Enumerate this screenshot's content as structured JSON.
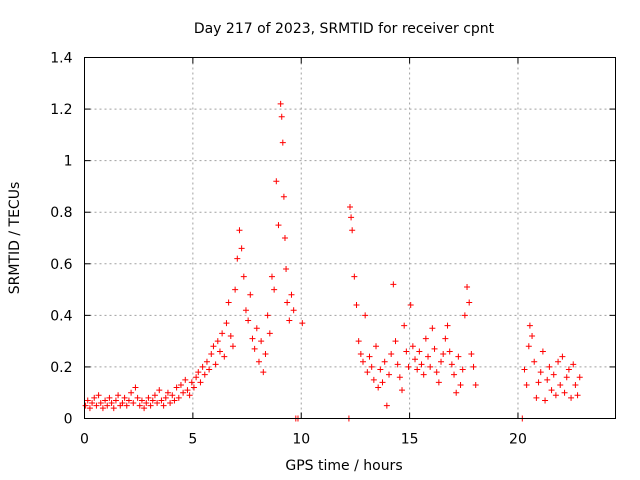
{
  "chart_data": {
    "type": "scatter",
    "title": "Day 217 of 2023, SRMTID for receiver cpnt",
    "xlabel": "GPS time / hours",
    "ylabel": "SRMTID / TECUs",
    "xlim": [
      0,
      24.5
    ],
    "ylim": [
      0,
      1.4
    ],
    "xticks": [
      0,
      5,
      10,
      15,
      20
    ],
    "xtick_labels": [
      "0",
      "5",
      "10",
      "15",
      "20"
    ],
    "yticks": [
      0,
      0.2,
      0.4,
      0.6,
      0.8,
      1.0,
      1.2,
      1.4
    ],
    "ytick_labels": [
      "0",
      "0.2",
      "0.4",
      "0.6",
      "0.8",
      "1",
      "1.2",
      "1.4"
    ],
    "grid": true,
    "marker": "+",
    "color": "#ff0000",
    "series": [
      {
        "name": "SRMTID",
        "points": [
          [
            0.05,
            0.05
          ],
          [
            0.15,
            0.07
          ],
          [
            0.25,
            0.04
          ],
          [
            0.35,
            0.06
          ],
          [
            0.45,
            0.08
          ],
          [
            0.55,
            0.05
          ],
          [
            0.65,
            0.09
          ],
          [
            0.75,
            0.06
          ],
          [
            0.85,
            0.04
          ],
          [
            0.95,
            0.07
          ],
          [
            1.05,
            0.05
          ],
          [
            1.15,
            0.08
          ],
          [
            1.25,
            0.06
          ],
          [
            1.35,
            0.04
          ],
          [
            1.45,
            0.07
          ],
          [
            1.55,
            0.09
          ],
          [
            1.65,
            0.05
          ],
          [
            1.75,
            0.06
          ],
          [
            1.85,
            0.08
          ],
          [
            1.95,
            0.05
          ],
          [
            2.05,
            0.07
          ],
          [
            2.15,
            0.1
          ],
          [
            2.25,
            0.06
          ],
          [
            2.35,
            0.12
          ],
          [
            2.45,
            0.08
          ],
          [
            2.55,
            0.05
          ],
          [
            2.65,
            0.07
          ],
          [
            2.75,
            0.04
          ],
          [
            2.85,
            0.06
          ],
          [
            2.95,
            0.08
          ],
          [
            3.05,
            0.05
          ],
          [
            3.15,
            0.07
          ],
          [
            3.25,
            0.09
          ],
          [
            3.35,
            0.06
          ],
          [
            3.45,
            0.11
          ],
          [
            3.55,
            0.07
          ],
          [
            3.65,
            0.05
          ],
          [
            3.75,
            0.08
          ],
          [
            3.85,
            0.1
          ],
          [
            3.95,
            0.06
          ],
          [
            4.05,
            0.09
          ],
          [
            4.15,
            0.07
          ],
          [
            4.25,
            0.12
          ],
          [
            4.35,
            0.08
          ],
          [
            4.45,
            0.13
          ],
          [
            4.55,
            0.1
          ],
          [
            4.65,
            0.15
          ],
          [
            4.75,
            0.11
          ],
          [
            4.85,
            0.09
          ],
          [
            4.95,
            0.14
          ],
          [
            5.05,
            0.12
          ],
          [
            5.15,
            0.16
          ],
          [
            5.25,
            0.18
          ],
          [
            5.35,
            0.14
          ],
          [
            5.45,
            0.2
          ],
          [
            5.55,
            0.17
          ],
          [
            5.65,
            0.22
          ],
          [
            5.75,
            0.19
          ],
          [
            5.85,
            0.25
          ],
          [
            5.95,
            0.28
          ],
          [
            6.05,
            0.21
          ],
          [
            6.15,
            0.3
          ],
          [
            6.25,
            0.26
          ],
          [
            6.35,
            0.33
          ],
          [
            6.45,
            0.24
          ],
          [
            6.55,
            0.37
          ],
          [
            6.65,
            0.45
          ],
          [
            6.75,
            0.32
          ],
          [
            6.85,
            0.28
          ],
          [
            6.95,
            0.5
          ],
          [
            7.05,
            0.62
          ],
          [
            7.15,
            0.73
          ],
          [
            7.25,
            0.66
          ],
          [
            7.35,
            0.55
          ],
          [
            7.45,
            0.42
          ],
          [
            7.55,
            0.38
          ],
          [
            7.65,
            0.48
          ],
          [
            7.75,
            0.31
          ],
          [
            7.85,
            0.27
          ],
          [
            7.95,
            0.35
          ],
          [
            8.05,
            0.22
          ],
          [
            8.15,
            0.3
          ],
          [
            8.25,
            0.18
          ],
          [
            8.35,
            0.25
          ],
          [
            8.45,
            0.4
          ],
          [
            8.55,
            0.33
          ],
          [
            8.65,
            0.55
          ],
          [
            8.75,
            0.5
          ],
          [
            8.85,
            0.92
          ],
          [
            8.95,
            0.75
          ],
          [
            9.05,
            1.22
          ],
          [
            9.1,
            1.17
          ],
          [
            9.15,
            1.07
          ],
          [
            9.2,
            0.86
          ],
          [
            9.25,
            0.7
          ],
          [
            9.3,
            0.58
          ],
          [
            9.35,
            0.45
          ],
          [
            9.45,
            0.38
          ],
          [
            9.55,
            0.48
          ],
          [
            9.65,
            0.42
          ],
          [
            9.75,
            0.0
          ],
          [
            9.85,
            0.0
          ],
          [
            10.05,
            0.37
          ],
          [
            12.2,
            0.0
          ],
          [
            12.25,
            0.82
          ],
          [
            12.3,
            0.78
          ],
          [
            12.35,
            0.73
          ],
          [
            12.45,
            0.55
          ],
          [
            12.55,
            0.44
          ],
          [
            12.65,
            0.3
          ],
          [
            12.75,
            0.25
          ],
          [
            12.85,
            0.22
          ],
          [
            12.95,
            0.4
          ],
          [
            13.05,
            0.18
          ],
          [
            13.15,
            0.24
          ],
          [
            13.25,
            0.2
          ],
          [
            13.35,
            0.15
          ],
          [
            13.45,
            0.28
          ],
          [
            13.55,
            0.12
          ],
          [
            13.65,
            0.19
          ],
          [
            13.75,
            0.14
          ],
          [
            13.85,
            0.22
          ],
          [
            13.95,
            0.05
          ],
          [
            14.05,
            0.17
          ],
          [
            14.15,
            0.25
          ],
          [
            14.25,
            0.52
          ],
          [
            14.35,
            0.3
          ],
          [
            14.45,
            0.21
          ],
          [
            14.55,
            0.16
          ],
          [
            14.65,
            0.11
          ],
          [
            14.75,
            0.36
          ],
          [
            14.85,
            0.26
          ],
          [
            14.95,
            0.2
          ],
          [
            15.05,
            0.44
          ],
          [
            15.15,
            0.28
          ],
          [
            15.25,
            0.23
          ],
          [
            15.35,
            0.19
          ],
          [
            15.45,
            0.26
          ],
          [
            15.55,
            0.21
          ],
          [
            15.65,
            0.17
          ],
          [
            15.75,
            0.31
          ],
          [
            15.85,
            0.24
          ],
          [
            15.95,
            0.2
          ],
          [
            16.05,
            0.35
          ],
          [
            16.15,
            0.27
          ],
          [
            16.25,
            0.18
          ],
          [
            16.35,
            0.14
          ],
          [
            16.45,
            0.22
          ],
          [
            16.55,
            0.25
          ],
          [
            16.65,
            0.31
          ],
          [
            16.75,
            0.36
          ],
          [
            16.85,
            0.26
          ],
          [
            16.95,
            0.21
          ],
          [
            17.05,
            0.17
          ],
          [
            17.15,
            0.1
          ],
          [
            17.25,
            0.24
          ],
          [
            17.35,
            0.13
          ],
          [
            17.45,
            0.19
          ],
          [
            17.55,
            0.4
          ],
          [
            17.65,
            0.51
          ],
          [
            17.75,
            0.45
          ],
          [
            17.85,
            0.25
          ],
          [
            17.95,
            0.2
          ],
          [
            18.05,
            0.13
          ],
          [
            20.2,
            0.0
          ],
          [
            20.3,
            0.19
          ],
          [
            20.4,
            0.13
          ],
          [
            20.5,
            0.28
          ],
          [
            20.55,
            0.36
          ],
          [
            20.65,
            0.32
          ],
          [
            20.75,
            0.22
          ],
          [
            20.85,
            0.08
          ],
          [
            20.95,
            0.14
          ],
          [
            21.05,
            0.18
          ],
          [
            21.15,
            0.26
          ],
          [
            21.25,
            0.07
          ],
          [
            21.35,
            0.15
          ],
          [
            21.45,
            0.2
          ],
          [
            21.55,
            0.11
          ],
          [
            21.65,
            0.17
          ],
          [
            21.75,
            0.09
          ],
          [
            21.85,
            0.22
          ],
          [
            21.95,
            0.13
          ],
          [
            22.05,
            0.24
          ],
          [
            22.15,
            0.1
          ],
          [
            22.25,
            0.16
          ],
          [
            22.35,
            0.19
          ],
          [
            22.45,
            0.08
          ],
          [
            22.55,
            0.21
          ],
          [
            22.65,
            0.13
          ],
          [
            22.75,
            0.09
          ],
          [
            22.85,
            0.16
          ]
        ]
      }
    ]
  }
}
